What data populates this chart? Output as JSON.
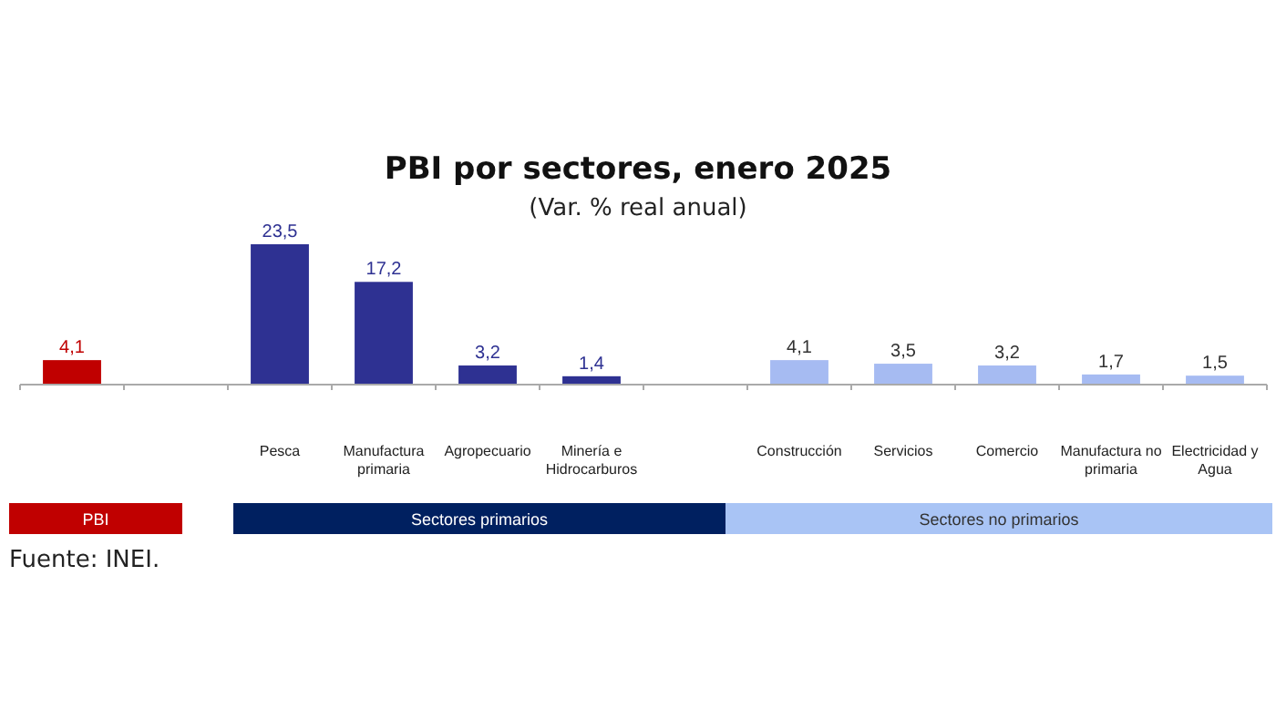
{
  "chart_data": {
    "type": "bar",
    "title": "PBI por sectores, enero 2025",
    "subtitle": "(Var. % real anual)",
    "categories": [
      null,
      null,
      "Pesca",
      "Manufactura primaria",
      "Agropecuario",
      "Minería e Hidrocarburos",
      null,
      "Construcción",
      "Servicios",
      "Comercio",
      "Manufactura no primaria",
      "Electricidad y Agua"
    ],
    "values": [
      4.1,
      null,
      23.5,
      17.2,
      3.2,
      1.4,
      null,
      4.1,
      3.5,
      3.2,
      1.7,
      1.5
    ],
    "value_labels": [
      "4,1",
      null,
      "23,5",
      "17,2",
      "3,2",
      "1,4",
      null,
      "4,1",
      "3,5",
      "3,2",
      "1,7",
      "1,5"
    ],
    "colors": [
      "#c00000",
      null,
      "#2e3192",
      "#2e3192",
      "#2e3192",
      "#2e3192",
      null,
      "#a6bbf2",
      "#a6bbf2",
      "#a6bbf2",
      "#a6bbf2",
      "#a6bbf2"
    ],
    "annotations": [
      "PBI",
      "Sectores primarios",
      "Sectores no primarios",
      "Fuente: INEI."
    ]
  }
}
